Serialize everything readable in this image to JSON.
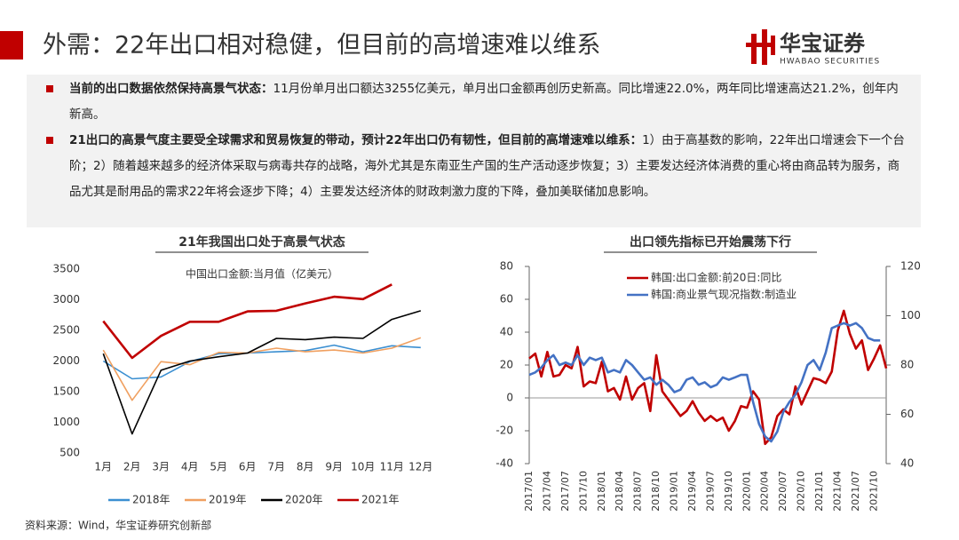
{
  "header": {
    "title": "外需：22年出口相对稳健，但目前的高增速难以维系",
    "logo": "华宝证券",
    "logo_en": "HWABAO SECURITIES"
  },
  "bullets": [
    {
      "bold": "当前的出口数据依然保持高景气状态：",
      "text": "11月份单月出口额达3255亿美元，单月出口金额再创历史新高。同比增速22.0%，两年同比增速高达21.2%，创年内新高。"
    },
    {
      "bold": "21出口的高景气度主要受全球需求和贸易恢复的带动，预计22年出口仍有韧性，但目前的高增速难以维系：",
      "text": "1）由于高基数的影响，22年出口增速会下一个台阶；2）随着越来越多的经济体采取与病毒共存的战略，海外尤其是东南亚生产国的生产活动逐步恢复；3）主要发达经济体消费的重心将由商品转为服务，商品尤其是耐用品的需求22年将会逐步下降；4）主要发达经济体的财政刺激力度的下降，叠加美联储加息影响。"
    }
  ],
  "source": "资料来源：Wind，华宝证券研究创新部",
  "chart_data": [
    {
      "type": "line",
      "title": "21年我国出口处于高景气状态",
      "subtitle": "中国出口金额:当月值（亿美元）",
      "categories": [
        "1月",
        "2月",
        "3月",
        "4月",
        "5月",
        "6月",
        "7月",
        "8月",
        "9月",
        "10月",
        "11月",
        "12月"
      ],
      "ylim": [
        500,
        3500
      ],
      "yticks": [
        500,
        1000,
        1500,
        2000,
        2500,
        3000,
        3500
      ],
      "legend": "bottom",
      "series": [
        {
          "name": "2018年",
          "color": "#3b8fd1",
          "values": [
            2000,
            1710,
            1740,
            1990,
            2120,
            2130,
            2150,
            2170,
            2260,
            2150,
            2250,
            2220
          ]
        },
        {
          "name": "2019年",
          "color": "#f0a060",
          "values": [
            2180,
            1360,
            1990,
            1940,
            2140,
            2130,
            2210,
            2150,
            2180,
            2130,
            2210,
            2380
          ]
        },
        {
          "name": "2020年",
          "color": "#000000",
          "values": [
            2120,
            810,
            1850,
            2000,
            2070,
            2130,
            2370,
            2350,
            2390,
            2370,
            2680,
            2820
          ]
        },
        {
          "name": "2021年",
          "color": "#c00000",
          "values": [
            2650,
            2050,
            2410,
            2640,
            2640,
            2810,
            2820,
            2940,
            3050,
            3010,
            3250,
            null
          ]
        }
      ]
    },
    {
      "type": "line",
      "title": "出口领先指标已开始震荡下行",
      "categories": [
        "2017/01",
        null,
        null,
        "2017/04",
        null,
        null,
        "2017/07",
        null,
        null,
        "2017/10",
        null,
        null,
        "2018/01",
        null,
        null,
        "2018/04",
        null,
        null,
        "2018/07",
        null,
        null,
        "2018/10",
        null,
        null,
        "2019/01",
        null,
        null,
        "2019/04",
        null,
        null,
        "2019/07",
        null,
        null,
        "2019/10",
        null,
        null,
        "2020/01",
        null,
        null,
        "2020/04",
        null,
        null,
        "2020/07",
        null,
        null,
        "2020/10",
        null,
        null,
        "2021/01",
        null,
        null,
        "2021/04",
        null,
        null,
        "2021/07",
        null,
        null,
        "2021/10",
        null,
        null
      ],
      "ylim": [
        -40,
        80
      ],
      "yticks": [
        -40,
        -20,
        0,
        20,
        40,
        60,
        80
      ],
      "y2lim": [
        40,
        120
      ],
      "y2ticks": [
        40,
        60,
        80,
        100,
        120
      ],
      "legend": "top-left",
      "series": [
        {
          "name": "韩国:出口金额:前20日:同比",
          "color": "#c00000",
          "values": [
            24,
            27,
            13,
            28,
            13,
            14,
            20,
            18,
            31,
            7,
            10,
            9,
            22,
            4,
            6,
            -1,
            13,
            -1,
            6,
            9,
            -8,
            26,
            4,
            -1,
            -6,
            -11,
            -8,
            -2,
            -9,
            -14,
            -11,
            -14,
            -12,
            -20,
            -14,
            -5,
            -6,
            4,
            -1,
            -28,
            -24,
            -11,
            -7,
            -10,
            7,
            -4,
            4,
            12,
            11,
            9,
            16,
            41,
            53,
            39,
            30,
            35,
            17,
            24,
            32,
            18
          ]
        },
        {
          "name": "韩国:商业景气现况指数:制造业",
          "color": "#4472c4",
          "axis": "y2",
          "values": [
            76,
            77,
            79,
            82,
            84,
            80,
            81,
            80,
            84,
            80,
            83,
            82,
            83,
            77,
            78,
            77,
            82,
            80,
            77,
            74,
            75,
            72,
            74,
            72,
            69,
            70,
            74,
            75,
            72,
            73,
            71,
            72,
            75,
            74,
            75,
            76,
            76,
            65,
            56,
            51,
            49,
            53,
            61,
            65,
            68,
            73,
            80,
            82,
            78,
            85,
            95,
            96,
            97,
            96,
            97,
            95,
            91,
            90,
            90,
            null
          ]
        }
      ]
    }
  ]
}
